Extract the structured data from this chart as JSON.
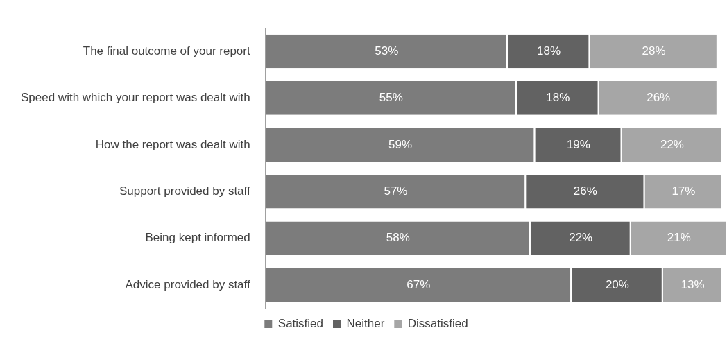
{
  "chart_data": {
    "type": "bar",
    "orientation": "horizontal",
    "stacked": true,
    "legend": "bottom",
    "categories": [
      "The final outcome of your report",
      "Speed with which your report was dealt with",
      "How the report was dealt with",
      "Support provided by staff",
      "Being kept informed",
      "Advice provided by staff"
    ],
    "series": [
      {
        "name": "Satisfied",
        "color": "#7c7c7c",
        "values": [
          53,
          55,
          59,
          57,
          58,
          67
        ],
        "value_labels": [
          "53%",
          "55%",
          "59%",
          "57%",
          "58%",
          "67%"
        ]
      },
      {
        "name": "Neither",
        "color": "#626262",
        "values": [
          18,
          18,
          19,
          26,
          22,
          20
        ],
        "value_labels": [
          "18%",
          "18%",
          "19%",
          "26%",
          "22%",
          "20%"
        ]
      },
      {
        "name": "Dissatisfied",
        "color": "#a6a6a6",
        "values": [
          28,
          26,
          22,
          17,
          21,
          13
        ],
        "value_labels": [
          "28%",
          "26%",
          "22%",
          "17%",
          "21%",
          "13%"
        ]
      }
    ]
  }
}
